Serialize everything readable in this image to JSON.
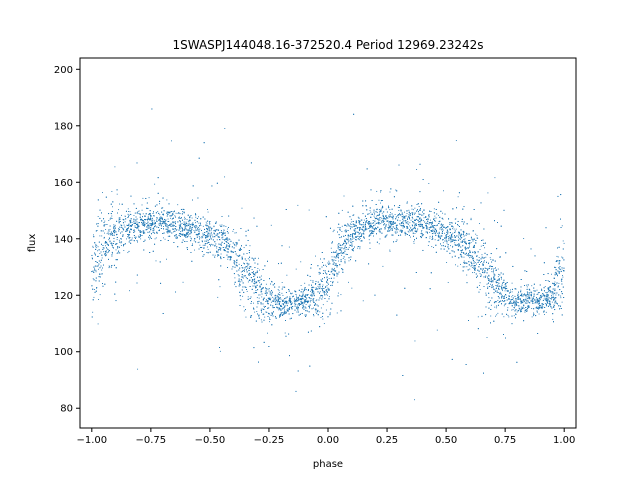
{
  "chart_data": {
    "type": "scatter",
    "title": "1SWASPJ144048.16-372520.4 Period 12969.23242s",
    "xlabel": "phase",
    "ylabel": "flux",
    "xlim": [
      -1.05,
      1.05
    ],
    "ylim": [
      73,
      204
    ],
    "x_ticks": [
      -1.0,
      -0.75,
      -0.5,
      -0.25,
      0.0,
      0.25,
      0.5,
      0.75,
      1.0
    ],
    "x_tick_labels": [
      "−1.00",
      "−0.75",
      "−0.50",
      "−0.25",
      "0.00",
      "0.25",
      "0.50",
      "0.75",
      "1.00"
    ],
    "y_ticks": [
      80,
      100,
      120,
      140,
      160,
      180,
      200
    ],
    "y_tick_labels": [
      "80",
      "100",
      "120",
      "140",
      "160",
      "180",
      "200"
    ],
    "grid": false,
    "series": [
      {
        "color": "#1f77b4",
        "x": [
          -1.0,
          -0.95,
          -0.9,
          -0.85,
          -0.8,
          -0.75,
          -0.7,
          -0.65,
          -0.6,
          -0.55,
          -0.5,
          -0.45,
          -0.4,
          -0.35,
          -0.3,
          -0.25,
          -0.2,
          -0.15,
          -0.1,
          -0.05,
          0.0,
          0.05,
          0.1,
          0.15,
          0.2,
          0.25,
          0.3,
          0.35,
          0.4,
          0.45,
          0.5,
          0.55,
          0.6,
          0.65,
          0.7,
          0.75,
          0.8,
          0.85,
          0.9,
          0.95,
          1.0
        ],
        "y": [
          128,
          137,
          141,
          143,
          145,
          146,
          146,
          145,
          144,
          143,
          141,
          139,
          135,
          128,
          121,
          118,
          117,
          117,
          118,
          120,
          126,
          135,
          141,
          144,
          146,
          146,
          146,
          146,
          145,
          144,
          142,
          140,
          136,
          130,
          124,
          120,
          118,
          118,
          118,
          120,
          128
        ],
        "spread": [
          11,
          8,
          6,
          5,
          4,
          4,
          4,
          4,
          4,
          4,
          4,
          5,
          6,
          8,
          8,
          5,
          3,
          3,
          3,
          5,
          9,
          7,
          5,
          4,
          4,
          4,
          4,
          4,
          4,
          4,
          4,
          5,
          6,
          8,
          8,
          5,
          3,
          3,
          3,
          5,
          11
        ]
      }
    ]
  }
}
